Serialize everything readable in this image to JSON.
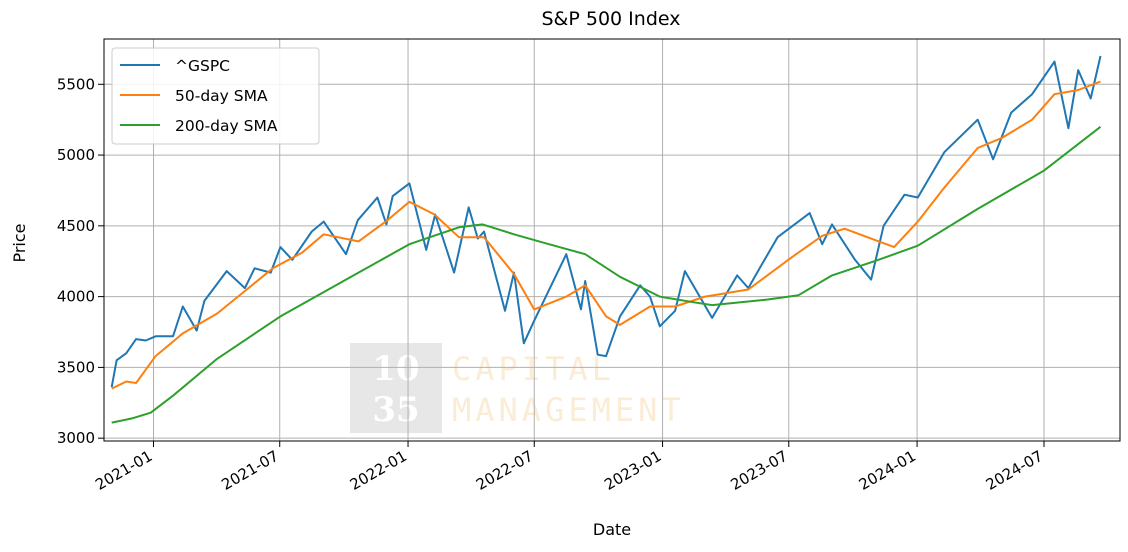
{
  "chart_data": {
    "type": "line",
    "title": "S&P 500 Index",
    "xlabel": "Date",
    "ylabel": "Price",
    "x_range": [
      "2020-10-22",
      "2024-10-18"
    ],
    "ylim": [
      2980,
      5820
    ],
    "grid": true,
    "legend_position": "top-left",
    "x_ticks": [
      "2021-01",
      "2021-07",
      "2022-01",
      "2022-07",
      "2023-01",
      "2023-07",
      "2024-01",
      "2024-07"
    ],
    "x_tick_dates": [
      "2021-01-01",
      "2021-07-01",
      "2022-01-01",
      "2022-07-01",
      "2023-01-01",
      "2023-07-01",
      "2024-01-01",
      "2024-07-01"
    ],
    "y_ticks": [
      3000,
      3500,
      4000,
      4500,
      5000,
      5500
    ],
    "watermark": {
      "digits": [
        "10",
        "35"
      ],
      "words": [
        "CAPITAL",
        "MANAGEMENT"
      ]
    },
    "series": [
      {
        "name": "^GSPC",
        "color": "#1f77b4",
        "points": [
          [
            "2020-11-02",
            3360
          ],
          [
            "2020-11-09",
            3550
          ],
          [
            "2020-11-23",
            3600
          ],
          [
            "2020-12-07",
            3700
          ],
          [
            "2020-12-21",
            3690
          ],
          [
            "2021-01-04",
            3720
          ],
          [
            "2021-01-29",
            3720
          ],
          [
            "2021-02-12",
            3930
          ],
          [
            "2021-03-04",
            3760
          ],
          [
            "2021-03-15",
            3970
          ],
          [
            "2021-04-16",
            4180
          ],
          [
            "2021-05-12",
            4060
          ],
          [
            "2021-05-26",
            4200
          ],
          [
            "2021-06-18",
            4170
          ],
          [
            "2021-07-02",
            4350
          ],
          [
            "2021-07-19",
            4260
          ],
          [
            "2021-08-16",
            4460
          ],
          [
            "2021-09-02",
            4530
          ],
          [
            "2021-10-04",
            4300
          ],
          [
            "2021-10-21",
            4540
          ],
          [
            "2021-11-18",
            4700
          ],
          [
            "2021-12-01",
            4510
          ],
          [
            "2021-12-10",
            4710
          ],
          [
            "2022-01-03",
            4800
          ],
          [
            "2022-01-27",
            4330
          ],
          [
            "2022-02-09",
            4580
          ],
          [
            "2022-03-08",
            4170
          ],
          [
            "2022-03-29",
            4630
          ],
          [
            "2022-04-11",
            4410
          ],
          [
            "2022-04-20",
            4460
          ],
          [
            "2022-05-20",
            3900
          ],
          [
            "2022-06-02",
            4170
          ],
          [
            "2022-06-16",
            3670
          ],
          [
            "2022-07-01",
            3830
          ],
          [
            "2022-08-16",
            4300
          ],
          [
            "2022-09-06",
            3910
          ],
          [
            "2022-09-12",
            4110
          ],
          [
            "2022-09-30",
            3590
          ],
          [
            "2022-10-12",
            3580
          ],
          [
            "2022-11-01",
            3860
          ],
          [
            "2022-11-30",
            4080
          ],
          [
            "2022-12-14",
            4000
          ],
          [
            "2022-12-28",
            3790
          ],
          [
            "2023-01-19",
            3900
          ],
          [
            "2023-02-02",
            4180
          ],
          [
            "2023-03-13",
            3850
          ],
          [
            "2023-04-18",
            4150
          ],
          [
            "2023-05-04",
            4060
          ],
          [
            "2023-05-19",
            4190
          ],
          [
            "2023-06-15",
            4420
          ],
          [
            "2023-07-31",
            4590
          ],
          [
            "2023-08-18",
            4370
          ],
          [
            "2023-09-01",
            4510
          ],
          [
            "2023-10-04",
            4260
          ],
          [
            "2023-10-27",
            4120
          ],
          [
            "2023-11-14",
            4500
          ],
          [
            "2023-12-14",
            4720
          ],
          [
            "2024-01-02",
            4700
          ],
          [
            "2024-02-09",
            5020
          ],
          [
            "2024-03-28",
            5250
          ],
          [
            "2024-04-19",
            4970
          ],
          [
            "2024-05-15",
            5300
          ],
          [
            "2024-06-14",
            5430
          ],
          [
            "2024-07-16",
            5660
          ],
          [
            "2024-08-05",
            5190
          ],
          [
            "2024-08-19",
            5600
          ],
          [
            "2024-09-06",
            5400
          ],
          [
            "2024-09-20",
            5700
          ]
        ]
      },
      {
        "name": "50-day SMA",
        "color": "#ff7f0e",
        "points": [
          [
            "2020-11-02",
            3350
          ],
          [
            "2020-11-23",
            3400
          ],
          [
            "2020-12-07",
            3390
          ],
          [
            "2021-01-04",
            3580
          ],
          [
            "2021-02-12",
            3740
          ],
          [
            "2021-04-02",
            3880
          ],
          [
            "2021-05-12",
            4040
          ],
          [
            "2021-06-21",
            4200
          ],
          [
            "2021-08-02",
            4310
          ],
          [
            "2021-09-02",
            4440
          ],
          [
            "2021-10-22",
            4390
          ],
          [
            "2021-11-30",
            4530
          ],
          [
            "2022-01-03",
            4670
          ],
          [
            "2022-02-08",
            4580
          ],
          [
            "2022-03-15",
            4420
          ],
          [
            "2022-04-20",
            4420
          ],
          [
            "2022-06-02",
            4160
          ],
          [
            "2022-07-01",
            3910
          ],
          [
            "2022-08-16",
            4000
          ],
          [
            "2022-09-12",
            4080
          ],
          [
            "2022-10-12",
            3860
          ],
          [
            "2022-11-01",
            3800
          ],
          [
            "2022-12-14",
            3930
          ],
          [
            "2023-01-19",
            3930
          ],
          [
            "2023-03-03",
            4000
          ],
          [
            "2023-05-04",
            4050
          ],
          [
            "2023-07-03",
            4270
          ],
          [
            "2023-08-18",
            4430
          ],
          [
            "2023-09-19",
            4480
          ],
          [
            "2023-10-27",
            4410
          ],
          [
            "2023-11-29",
            4350
          ],
          [
            "2024-01-02",
            4530
          ],
          [
            "2024-02-09",
            4770
          ],
          [
            "2024-03-28",
            5050
          ],
          [
            "2024-05-01",
            5120
          ],
          [
            "2024-06-14",
            5250
          ],
          [
            "2024-07-16",
            5430
          ],
          [
            "2024-08-19",
            5460
          ],
          [
            "2024-09-20",
            5520
          ]
        ]
      },
      {
        "name": "200-day SMA",
        "color": "#2ca02c",
        "points": [
          [
            "2020-11-02",
            3110
          ],
          [
            "2020-12-01",
            3140
          ],
          [
            "2020-12-28",
            3180
          ],
          [
            "2021-01-29",
            3300
          ],
          [
            "2021-04-02",
            3560
          ],
          [
            "2021-07-02",
            3860
          ],
          [
            "2021-10-04",
            4120
          ],
          [
            "2022-01-03",
            4370
          ],
          [
            "2022-03-15",
            4490
          ],
          [
            "2022-04-18",
            4510
          ],
          [
            "2022-06-02",
            4440
          ],
          [
            "2022-07-15",
            4380
          ],
          [
            "2022-09-12",
            4300
          ],
          [
            "2022-11-01",
            4140
          ],
          [
            "2022-12-28",
            4000
          ],
          [
            "2023-02-15",
            3960
          ],
          [
            "2023-03-13",
            3940
          ],
          [
            "2023-06-01",
            3980
          ],
          [
            "2023-07-15",
            4010
          ],
          [
            "2023-09-01",
            4150
          ],
          [
            "2023-11-01",
            4250
          ],
          [
            "2024-01-02",
            4360
          ],
          [
            "2024-03-28",
            4620
          ],
          [
            "2024-07-01",
            4890
          ],
          [
            "2024-09-20",
            5200
          ]
        ]
      }
    ]
  }
}
